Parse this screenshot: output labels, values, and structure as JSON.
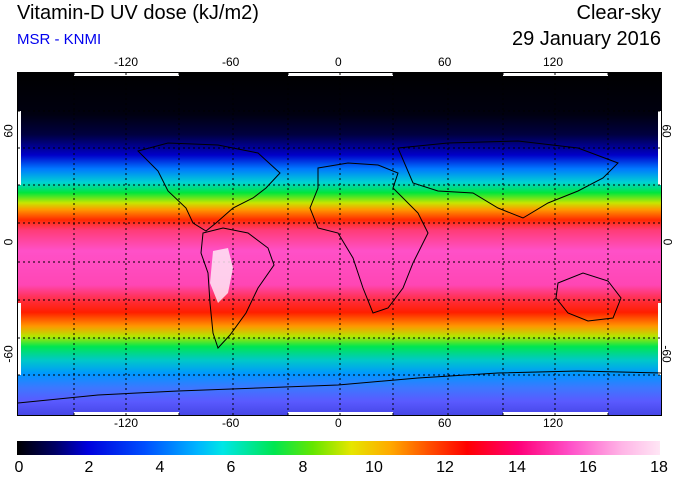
{
  "header": {
    "title": "Vitamin-D UV dose (kJ/m2)",
    "source": "MSR - KNMI",
    "sky_condition": "Clear-sky",
    "date": "29 January 2016"
  },
  "map": {
    "longitude_ticks": [
      "-120",
      "-60",
      "0",
      "60",
      "120"
    ],
    "latitude_ticks_left": [
      "60",
      "0",
      "-60"
    ],
    "latitude_ticks_right": [
      "60",
      "0",
      "-60"
    ]
  },
  "colorbar": {
    "ticks": [
      "0",
      "2",
      "4",
      "6",
      "8",
      "10",
      "12",
      "14",
      "16",
      "18"
    ],
    "min": 0,
    "max": 18
  }
}
